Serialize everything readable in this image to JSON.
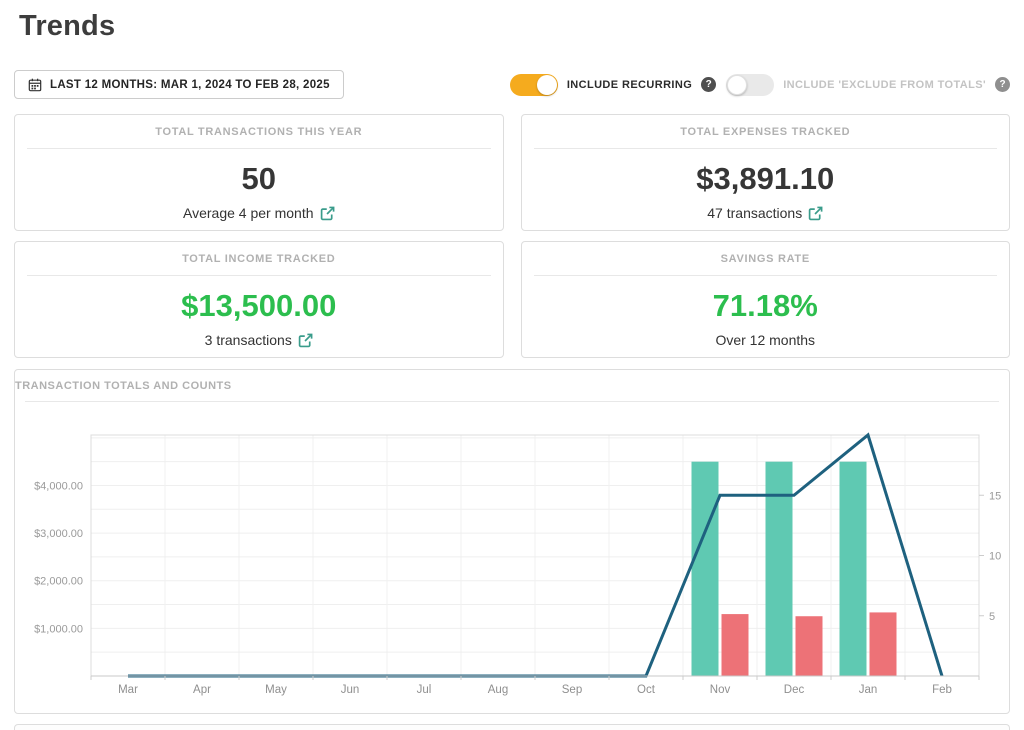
{
  "page": {
    "title": "Trends"
  },
  "controls": {
    "date_range_label": "LAST 12 MONTHS: MAR 1, 2024 TO FEB 28, 2025",
    "toggles": [
      {
        "label": "INCLUDE RECURRING",
        "state": "on"
      },
      {
        "label": "INCLUDE 'EXCLUDE FROM TOTALS'",
        "state": "off"
      }
    ]
  },
  "cards": [
    {
      "title": "TOTAL TRANSACTIONS THIS YEAR",
      "value": "50",
      "value_color": "dark",
      "subtext": "Average 4 per month",
      "has_link_icon": true
    },
    {
      "title": "TOTAL EXPENSES TRACKED",
      "value": "$3,891.10",
      "value_color": "dark",
      "subtext": "47 transactions",
      "has_link_icon": true
    },
    {
      "title": "TOTAL INCOME TRACKED",
      "value": "$13,500.00",
      "value_color": "green",
      "subtext": "3 transactions",
      "has_link_icon": true
    },
    {
      "title": "SAVINGS RATE",
      "value": "71.18%",
      "value_color": "green",
      "subtext": "Over 12 months",
      "has_link_icon": false
    }
  ],
  "chart_card": {
    "title": "TRANSACTION TOTALS AND COUNTS"
  },
  "chart_data": {
    "type": "bar+line combo",
    "title": "TRANSACTION TOTALS AND COUNTS",
    "categories": [
      "Mar",
      "Apr",
      "May",
      "Jun",
      "Jul",
      "Aug",
      "Sep",
      "Oct",
      "Nov",
      "Dec",
      "Jan",
      "Feb"
    ],
    "series": [
      {
        "name": "income-total",
        "type": "bar",
        "color": "#5fc9b2",
        "axis": "left",
        "values": [
          0,
          0,
          0,
          0,
          0,
          0,
          0,
          0,
          4500,
          4500,
          4500,
          0
        ]
      },
      {
        "name": "expense-total",
        "type": "bar",
        "color": "#ed7277",
        "axis": "left",
        "values": [
          0,
          0,
          0,
          0,
          0,
          0,
          0,
          0,
          1300,
          1255,
          1335,
          0
        ]
      },
      {
        "name": "transaction-count",
        "type": "line",
        "color": "#1e617f",
        "axis": "right",
        "values": [
          0,
          0,
          0,
          0,
          0,
          0,
          0,
          0,
          15,
          15,
          20,
          0
        ]
      }
    ],
    "left_axis": {
      "max": 5060,
      "gridline_step": 500,
      "ticks": [
        {
          "value": 1000,
          "label": "$1,000.00"
        },
        {
          "value": 2000,
          "label": "$2,000.00"
        },
        {
          "value": 3000,
          "label": "$3,000.00"
        },
        {
          "value": 4000,
          "label": "$4,000.00"
        }
      ]
    },
    "right_axis": {
      "max": 20,
      "ticks": [
        5,
        10,
        15
      ]
    },
    "grid": true,
    "legend": "none"
  },
  "colors": {
    "value_green": "#2cbe4e",
    "accent_teal": "#3a9c8b",
    "toggle_on": "#f5ab1e",
    "bar_income": "#5fc9b2",
    "bar_expense": "#ed7277",
    "count_line": "#1e617f"
  }
}
